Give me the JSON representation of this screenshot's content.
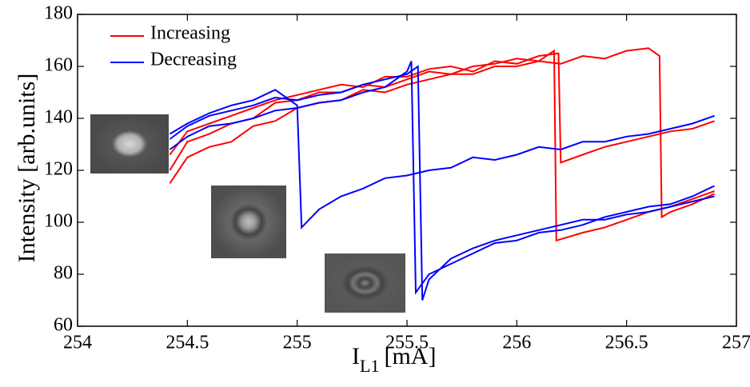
{
  "chart_data": {
    "type": "line",
    "ylabel": "Intensity [arb.units]",
    "xlabel": "I",
    "xlabel_subscript": "L1",
    "xlabel_unit": "[mA]",
    "xlim": [
      254,
      257
    ],
    "xticks": [
      254,
      254.5,
      255,
      255.5,
      256,
      256.5,
      257
    ],
    "ylim": [
      60,
      180
    ],
    "yticks": [
      60,
      80,
      100,
      120,
      140,
      160,
      180
    ],
    "legend": "upper left",
    "series": [
      {
        "name": "Increasing",
        "color": "#ff0000",
        "traces": [
          {
            "x": [
              254.42,
              254.5,
              254.6,
              254.7,
              254.8,
              254.9,
              255.0,
              255.1,
              255.2,
              255.3,
              255.4,
              255.5,
              255.6,
              255.7,
              255.8,
              255.9,
              256.0,
              256.1,
              256.2,
              256.3,
              256.4,
              256.5,
              256.6,
              256.65,
              256.66,
              256.7,
              256.8,
              256.9
            ],
            "values": [
              115,
              125,
              129,
              131,
              137,
              139,
              144,
              146,
              147,
              151,
              150,
              153,
              155,
              157,
              157,
              160,
              160,
              162,
              161,
              164,
              163,
              166,
              167,
              164,
              102,
              104,
              107,
              111
            ]
          },
          {
            "x": [
              254.42,
              254.5,
              254.6,
              254.7,
              254.8,
              254.9,
              255.0,
              255.1,
              255.2,
              255.3,
              255.4,
              255.5,
              255.6,
              255.7,
              255.8,
              255.9,
              256.0,
              256.1,
              256.17,
              256.18,
              256.3,
              256.4,
              256.5,
              256.6,
              256.7,
              256.8,
              256.9
            ],
            "values": [
              120,
              131,
              134,
              138,
              140,
              146,
              147,
              150,
              150,
              153,
              152,
              155,
              158,
              157,
              160,
              161,
              163,
              162,
              166,
              93,
              96,
              98,
              101,
              104,
              106,
              109,
              112
            ]
          },
          {
            "x": [
              254.42,
              254.5,
              254.6,
              254.7,
              254.8,
              254.9,
              255.0,
              255.1,
              255.2,
              255.3,
              255.4,
              255.5,
              255.6,
              255.7,
              255.8,
              255.9,
              256.0,
              256.1,
              256.19,
              256.2,
              256.3,
              256.4,
              256.5,
              256.6,
              256.7,
              256.8,
              256.9
            ],
            "values": [
              126,
              135,
              138,
              141,
              144,
              147,
              149,
              151,
              153,
              152,
              156,
              156,
              159,
              160,
              158,
              162,
              161,
              164,
              165,
              123,
              126,
              129,
              131,
              133,
              135,
              136,
              139
            ]
          }
        ]
      },
      {
        "name": "Decreasing",
        "color": "#0000ff",
        "traces": [
          {
            "x": [
              256.9,
              256.8,
              256.7,
              256.6,
              256.5,
              256.4,
              256.3,
              256.2,
              256.1,
              256.0,
              255.9,
              255.8,
              255.7,
              255.6,
              255.5,
              255.4,
              255.3,
              255.2,
              255.1,
              255.02,
              255.0,
              254.9,
              254.8,
              254.7,
              254.6,
              254.5,
              254.42
            ],
            "values": [
              141,
              138,
              136,
              134,
              133,
              131,
              131,
              128,
              129,
              126,
              124,
              125,
              121,
              120,
              118,
              117,
              113,
              110,
              105,
              98,
              145,
              151,
              147,
              145,
              142,
              138,
              134
            ]
          },
          {
            "x": [
              256.9,
              256.8,
              256.7,
              256.6,
              256.5,
              256.4,
              256.3,
              256.2,
              256.1,
              256.0,
              255.9,
              255.8,
              255.7,
              255.6,
              255.57,
              255.55,
              255.5,
              255.4,
              255.3,
              255.2,
              255.1,
              255.0,
              254.9,
              254.8,
              254.7,
              254.6,
              254.5,
              254.42
            ],
            "values": [
              110,
              108,
              106,
              104,
              103,
              101,
              101,
              99,
              97,
              95,
              93,
              90,
              86,
              78,
              70,
              160,
              157,
              155,
              153,
              150,
              149,
              147,
              148,
              145,
              143,
              141,
              137,
              132
            ]
          },
          {
            "x": [
              256.9,
              256.8,
              256.7,
              256.6,
              256.5,
              256.4,
              256.3,
              256.2,
              256.1,
              256.0,
              255.9,
              255.8,
              255.7,
              255.6,
              255.54,
              255.52,
              255.5,
              255.4,
              255.3,
              255.2,
              255.1,
              255.0,
              254.9,
              254.8,
              254.7,
              254.6,
              254.5,
              254.42
            ],
            "values": [
              114,
              110,
              107,
              106,
              104,
              102,
              99,
              97,
              96,
              93,
              92,
              88,
              84,
              80,
              73,
              162,
              158,
              152,
              150,
              147,
              146,
              144,
              143,
              140,
              138,
              137,
              133,
              128
            ]
          }
        ]
      }
    ]
  }
}
